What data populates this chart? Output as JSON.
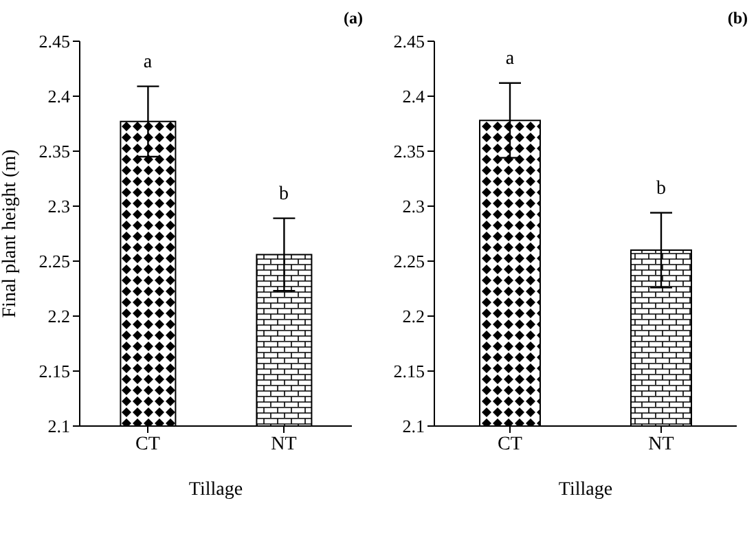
{
  "chart_data": [
    {
      "type": "bar",
      "title": "(a)",
      "xlabel": "Tillage",
      "ylabel": "Final plant height (m)",
      "categories": [
        "CT",
        "NT"
      ],
      "values": [
        2.377,
        2.256
      ],
      "errors": [
        0.032,
        0.033
      ],
      "colors": [
        "#000000",
        "#000000"
      ],
      "ylim": [
        2.1,
        2.45
      ],
      "yticks": [
        2.1,
        2.15,
        2.2,
        2.25,
        2.3,
        2.35,
        2.4,
        2.45
      ],
      "grid": false,
      "legend": false,
      "annotations": [
        "a",
        "b"
      ]
    },
    {
      "type": "bar",
      "title": "(b)",
      "xlabel": "Tillage",
      "categories": [
        "CT",
        "NT"
      ],
      "values": [
        2.378,
        2.26
      ],
      "errors": [
        0.034,
        0.034
      ],
      "colors": [
        "#000000",
        "#000000"
      ],
      "ylim": [
        2.1,
        2.45
      ],
      "yticks": [
        2.1,
        2.15,
        2.2,
        2.25,
        2.3,
        2.35,
        2.4,
        2.45
      ],
      "grid": false,
      "legend": false,
      "annotations": [
        "a",
        "b"
      ]
    }
  ]
}
